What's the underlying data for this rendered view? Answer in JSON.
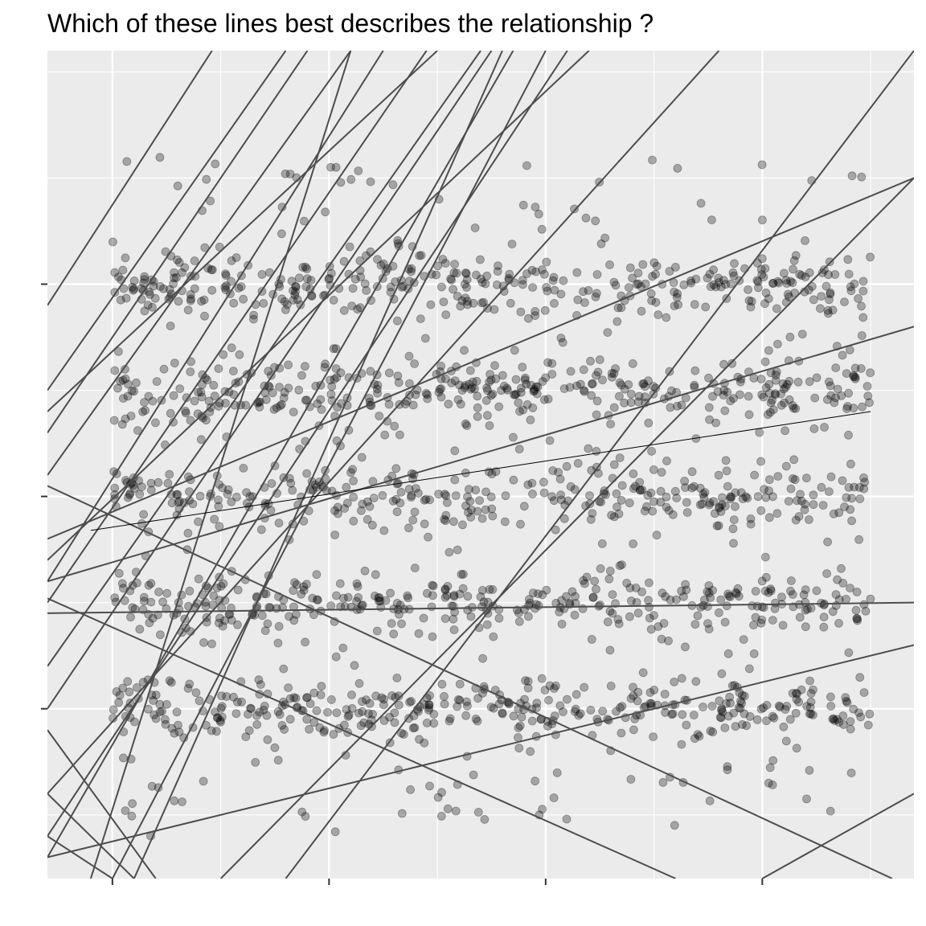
{
  "chart_data": {
    "type": "scatter",
    "title": "Which of these lines best describes the relationship ?",
    "xlabel": "",
    "ylabel": "",
    "xlim": [
      -0.3,
      3.7
    ],
    "ylim": [
      -1.8,
      2.1
    ],
    "x_ticks": [
      0,
      1,
      2,
      3
    ],
    "y_ticks": [
      -1,
      0,
      1
    ],
    "x_tick_labels": [
      "",
      "",
      "",
      ""
    ],
    "y_tick_labels": [
      "",
      "",
      ""
    ],
    "grid": true,
    "legend": "none",
    "point_count": 2000,
    "point_distribution": {
      "x_range": [
        0,
        3.5
      ],
      "y_clusters": [
        1,
        0.5,
        0,
        -0.5,
        -1
      ],
      "cluster_spread": 0.12,
      "scatter_spread": 0.6
    },
    "candidate_lines": [
      {
        "x0": -0.3,
        "y0": 0.9,
        "x1": 0.46,
        "y1": 2.1
      },
      {
        "x0": -0.3,
        "y0": 0.5,
        "x1": 0.8,
        "y1": 2.1
      },
      {
        "x0": -0.3,
        "y0": 0.3,
        "x1": 0.9,
        "y1": 2.1
      },
      {
        "x0": -0.3,
        "y0": 0.1,
        "x1": 1.1,
        "y1": 2.1
      },
      {
        "x0": -0.3,
        "y0": -0.4,
        "x1": 1.25,
        "y1": 2.1
      },
      {
        "x0": -0.3,
        "y0": -0.5,
        "x1": 1.45,
        "y1": 2.1
      },
      {
        "x0": -0.3,
        "y0": -0.8,
        "x1": 1.7,
        "y1": 2.1
      },
      {
        "x0": -0.3,
        "y0": -1.0,
        "x1": 1.75,
        "y1": 2.1
      },
      {
        "x0": -0.3,
        "y0": -1.4,
        "x1": 2.8,
        "y1": 2.1
      },
      {
        "x0": -0.3,
        "y0": -1.7,
        "x1": 1.85,
        "y1": 2.1
      },
      {
        "x0": -0.3,
        "y0": -1.6,
        "x1": 2.1,
        "y1": 2.1
      },
      {
        "x0": 0.0,
        "y0": -1.8,
        "x1": 2.0,
        "y1": 2.1
      },
      {
        "x0": 0.1,
        "y0": -1.8,
        "x1": 1.8,
        "y1": 2.1
      },
      {
        "x0": 0.5,
        "y0": -1.8,
        "x1": 3.7,
        "y1": 1.5
      },
      {
        "x0": 0.8,
        "y0": -1.8,
        "x1": 3.7,
        "y1": 2.1
      },
      {
        "x0": -0.1,
        "y0": -1.8,
        "x1": 1.1,
        "y1": 2.1
      },
      {
        "x0": -0.3,
        "y0": 0.4,
        "x1": 1.5,
        "y1": 2.1
      },
      {
        "x0": -0.3,
        "y0": -0.3,
        "x1": 2.2,
        "y1": 2.1
      },
      {
        "x0": -0.3,
        "y0": -0.2,
        "x1": 3.7,
        "y1": 1.5
      },
      {
        "x0": -0.3,
        "y0": -0.4,
        "x1": 3.7,
        "y1": 0.8
      },
      {
        "x0": -0.3,
        "y0": -1.7,
        "x1": 3.7,
        "y1": -0.7
      },
      {
        "x0": -0.3,
        "y0": -0.55,
        "x1": 3.7,
        "y1": -0.5
      },
      {
        "x0": -0.3,
        "y0": 0.05,
        "x1": 3.6,
        "y1": -1.8
      },
      {
        "x0": -0.3,
        "y0": -0.48,
        "x1": 2.6,
        "y1": -1.8
      },
      {
        "x0": 3.0,
        "y0": -1.8,
        "x1": 3.7,
        "y1": -1.4
      },
      {
        "x0": -0.3,
        "y0": -1.4,
        "x1": 0.1,
        "y1": -1.8
      },
      {
        "x0": -0.3,
        "y0": -1.6,
        "x1": 0.0,
        "y1": -1.8
      },
      {
        "x0": -0.3,
        "y0": -1.1,
        "x1": 0.2,
        "y1": -1.8
      }
    ],
    "fitted_line": {
      "x0": -0.1,
      "y0": -0.16,
      "x1": 3.5,
      "y1": 0.4
    }
  },
  "colors": {
    "panel": "#ebebeb",
    "grid": "#ffffff",
    "point_fill": "#000000",
    "line": "#4d4d4d",
    "fitted": "#000000"
  }
}
